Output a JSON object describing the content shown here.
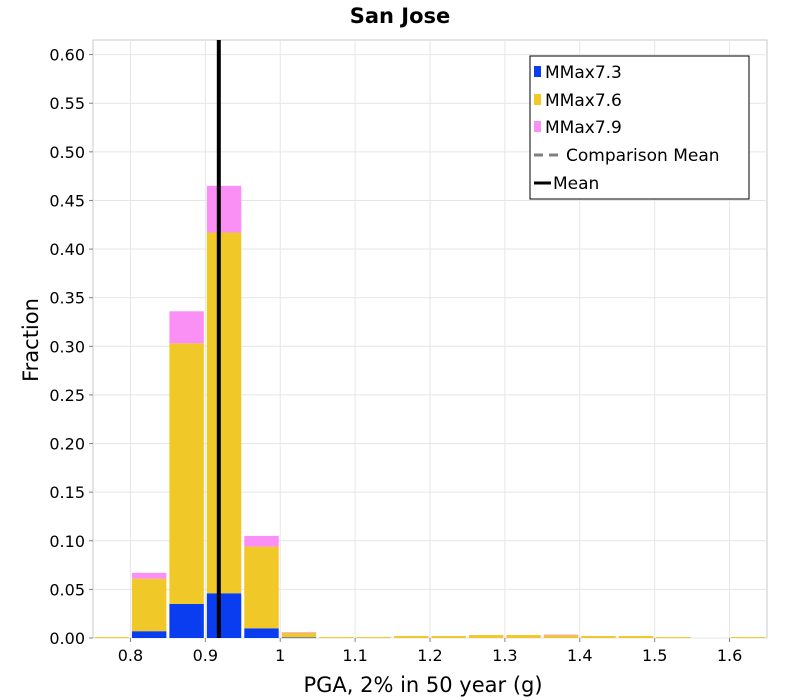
{
  "chart_data": {
    "type": "bar",
    "stacked": true,
    "title": "San Jose",
    "xlabel": "PGA, 2% in 50 year (g)",
    "ylabel": "Fraction",
    "xlim": [
      0.75,
      1.65
    ],
    "ylim": [
      0,
      0.615
    ],
    "bin_width": 0.05,
    "grid": true,
    "legend_position": "top-right",
    "x_ticks": [
      "0.8",
      "0.9",
      "1",
      "1.1",
      "1.2",
      "1.3",
      "1.4",
      "1.5",
      "1.6"
    ],
    "x_tick_values": [
      0.8,
      0.9,
      1.0,
      1.1,
      1.2,
      1.3,
      1.4,
      1.5,
      1.6
    ],
    "y_ticks": [
      "0.00",
      "0.05",
      "0.10",
      "0.15",
      "0.20",
      "0.25",
      "0.30",
      "0.35",
      "0.40",
      "0.45",
      "0.50",
      "0.55",
      "0.60"
    ],
    "y_tick_values": [
      0,
      0.05,
      0.1,
      0.15,
      0.2,
      0.25,
      0.3,
      0.35,
      0.4,
      0.45,
      0.5,
      0.55,
      0.6
    ],
    "x": [
      0.775,
      0.825,
      0.875,
      0.925,
      0.975,
      1.025,
      1.075,
      1.125,
      1.175,
      1.225,
      1.275,
      1.325,
      1.375,
      1.425,
      1.475,
      1.525,
      1.575,
      1.625
    ],
    "series": [
      {
        "name": "MMax7.3",
        "color": "#0a3cf0",
        "values": [
          0.0,
          0.007,
          0.035,
          0.046,
          0.01,
          0.0005,
          0.0,
          0.0,
          0.0,
          0.0,
          0.0,
          0.0,
          0.0,
          0.0,
          0.0,
          0.0,
          0.0,
          0.0
        ]
      },
      {
        "name": "MMax7.6",
        "color": "#f0c828",
        "values": [
          0.001,
          0.054,
          0.268,
          0.371,
          0.084,
          0.005,
          0.001,
          0.001,
          0.002,
          0.002,
          0.003,
          0.003,
          0.003,
          0.002,
          0.002,
          0.001,
          0.0,
          0.001
        ]
      },
      {
        "name": "MMax7.9",
        "color": "#fa90f5",
        "values": [
          0.0,
          0.006,
          0.033,
          0.048,
          0.011,
          0.0005,
          0.0,
          0.0,
          0.0,
          0.0,
          0.0,
          0.0,
          0.0005,
          0.0,
          0.0,
          0.0,
          0.0,
          0.0
        ]
      }
    ],
    "mean_line": {
      "name": "Mean",
      "x": 0.918,
      "color": "#000000"
    },
    "comparison_mean_line": {
      "name": "Comparison Mean",
      "x": 0.918,
      "color": "#808080"
    }
  }
}
